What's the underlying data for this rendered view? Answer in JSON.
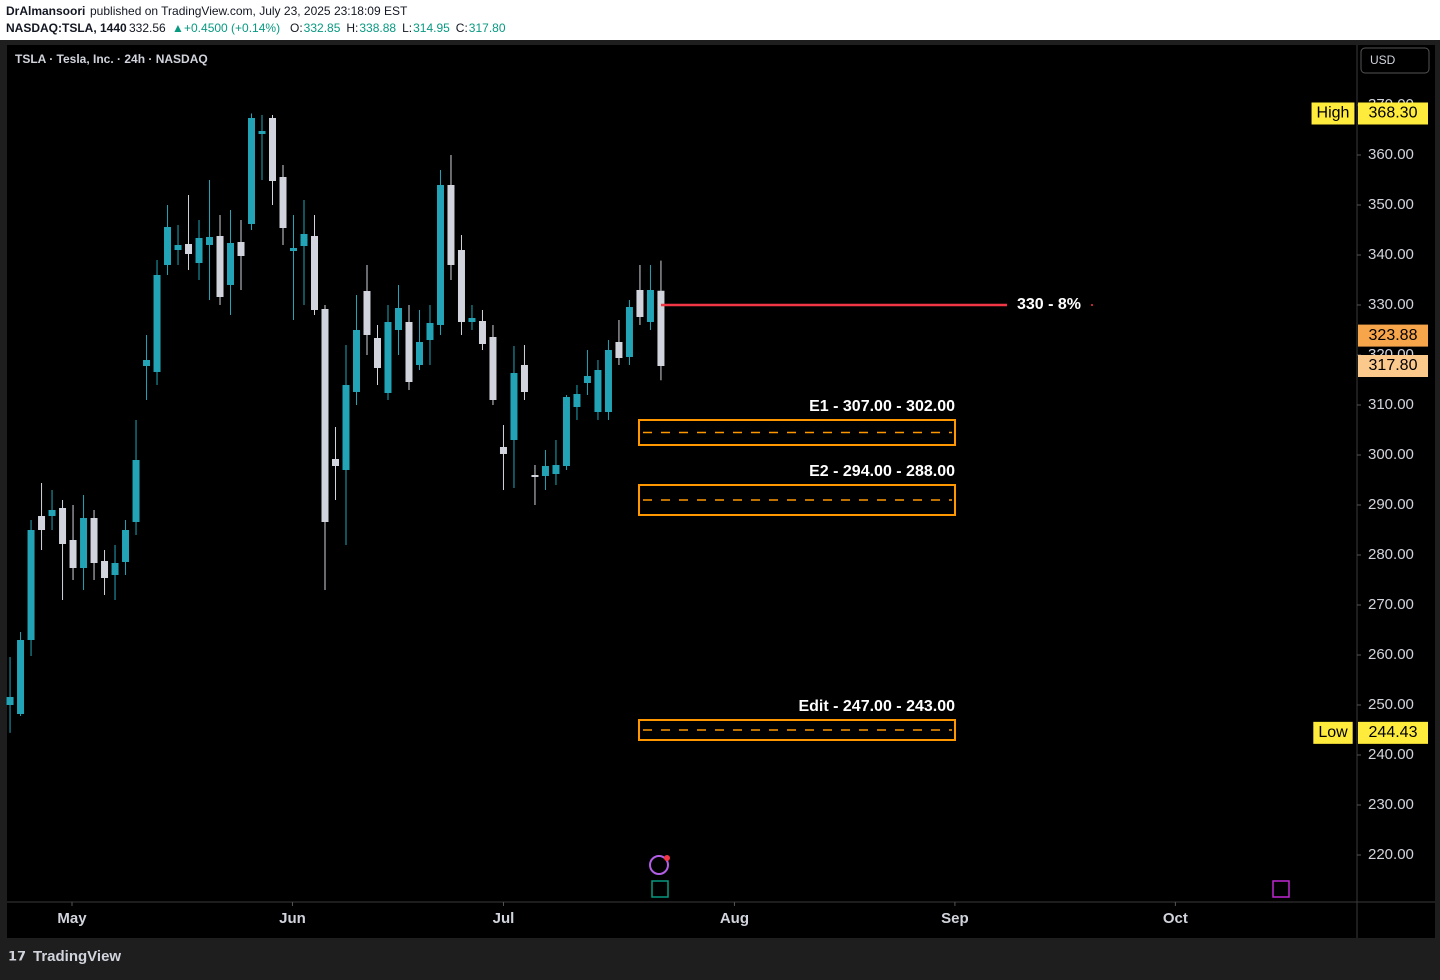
{
  "header": {
    "author": "DrAlmansoori",
    "published": "published on TradingView.com, July 23, 2025 23:18:09 EST",
    "symbol": "NASDAQ:TSLA, 1440",
    "last": "332.56",
    "change": "+0.4500 (+0.14%)",
    "ohlc": [
      {
        "label": "O:",
        "value": "332.85"
      },
      {
        "label": "H:",
        "value": "338.88"
      },
      {
        "label": "L:",
        "value": "314.95"
      },
      {
        "label": "C:",
        "value": "317.80"
      }
    ]
  },
  "footer": {
    "brand": "TradingView"
  },
  "chart_data": {
    "type": "candlestick",
    "title": "TSLA · Tesla, Inc. · 24h · NASDAQ",
    "currency": "USD",
    "up_color": "#22a4b6",
    "down_color": "#d1d4dc",
    "xlim": [
      -0.29,
      128.3
    ],
    "xticks": [
      {
        "value": 5.9,
        "label": "May"
      },
      {
        "value": 26.9,
        "label": "Jun"
      },
      {
        "value": 47,
        "label": "Jul"
      },
      {
        "value": 69,
        "label": "Aug"
      },
      {
        "value": 90,
        "label": "Sep"
      },
      {
        "value": 111,
        "label": "Oct"
      }
    ],
    "ylim": [
      210.6,
      382
    ],
    "yticks": [
      {
        "value": 220,
        "label": "220.00"
      },
      {
        "value": 230,
        "label": "230.00"
      },
      {
        "value": 240,
        "label": "240.00"
      },
      {
        "value": 250,
        "label": "250.00"
      },
      {
        "value": 260,
        "label": "260.00"
      },
      {
        "value": 270,
        "label": "270.00"
      },
      {
        "value": 280,
        "label": "280.00"
      },
      {
        "value": 290,
        "label": "290.00"
      },
      {
        "value": 300,
        "label": "300.00"
      },
      {
        "value": 310,
        "label": "310.00"
      },
      {
        "value": 320,
        "label": "320.00"
      },
      {
        "value": 330,
        "label": "330.00"
      },
      {
        "value": 340,
        "label": "340.00"
      },
      {
        "value": 350,
        "label": "350.00"
      },
      {
        "value": 360,
        "label": "360.00"
      },
      {
        "value": 370,
        "label": "370.00"
      }
    ],
    "open": [
      250,
      248.2,
      263,
      287.8,
      287.8,
      289.4,
      283,
      277.4,
      287.4,
      278.8,
      276,
      278.6,
      286.6,
      317.8,
      316.6,
      338,
      341,
      342.2,
      338.4,
      342,
      343.8,
      334,
      342.6,
      346.2,
      364.2,
      367.4,
      355.6,
      340.8,
      341.8,
      343.8,
      329.2,
      299.2,
      297,
      312.6,
      332.8,
      323.4,
      312.4,
      325,
      326.6,
      318,
      323,
      326,
      354,
      341,
      326.6,
      326.8,
      323.6,
      301.6,
      303,
      318,
      296,
      295.8,
      296.2,
      297.8,
      309.6,
      314.4,
      308.6,
      308.6,
      322.6,
      319.6,
      333,
      326.6,
      332.85
    ],
    "high": [
      259.6,
      264.6,
      287,
      294.4,
      293,
      291,
      290,
      292,
      289,
      281,
      282,
      287,
      307,
      324,
      339,
      350,
      346,
      352,
      347,
      355,
      348,
      349,
      347,
      368.3,
      368,
      368,
      358,
      348,
      351,
      348,
      330,
      305.6,
      322,
      332,
      338,
      326,
      330,
      334,
      330,
      329,
      330,
      357,
      360,
      344,
      330,
      329,
      326,
      306,
      321.8,
      322,
      298,
      301,
      303,
      312,
      314,
      321,
      319,
      323,
      327,
      331,
      338,
      338,
      338.88
    ],
    "low": [
      244.43,
      247.8,
      259.8,
      281,
      285,
      271,
      275,
      273,
      275,
      272,
      271,
      276,
      284,
      311,
      314,
      336,
      338,
      337,
      335,
      331,
      330,
      328,
      333,
      345,
      355,
      350,
      342,
      327,
      330,
      328,
      273,
      291,
      282,
      310,
      320,
      314,
      311,
      320,
      313,
      317,
      318,
      324,
      335,
      324,
      325,
      321,
      310,
      293,
      293.4,
      311,
      290,
      293,
      294,
      297,
      307,
      312,
      307,
      307,
      318,
      318,
      326,
      325,
      314.95
    ],
    "close": [
      251.6,
      263,
      285,
      285,
      289,
      282.2,
      277.4,
      287.4,
      278.4,
      275.4,
      278.4,
      285,
      299,
      319,
      336,
      345.6,
      342,
      340.2,
      343.4,
      343.6,
      331.6,
      342.4,
      339.8,
      367.4,
      364.8,
      354.8,
      345.4,
      341.4,
      344.2,
      329,
      286.6,
      297.8,
      314,
      325,
      324,
      317.4,
      326.6,
      329.4,
      314.6,
      322.6,
      326.4,
      354,
      338,
      326.6,
      327.4,
      322.2,
      311,
      300.2,
      316.4,
      312.6,
      295.6,
      297.8,
      298,
      311.6,
      312.2,
      315.8,
      317,
      321,
      319.4,
      329.6,
      327.6,
      333,
      317.8
    ],
    "hline": {
      "value": 330,
      "label": "330 - 8%",
      "color": "#f23645"
    },
    "zones": [
      {
        "label": "E1 - 307.00 - 302.00",
        "top": 307,
        "bottom": 302
      },
      {
        "label": "E2 - 294.00 - 288.00",
        "top": 294,
        "bottom": 288
      },
      {
        "label": "Edit - 247.00 - 243.00",
        "top": 247,
        "bottom": 243
      }
    ],
    "zone_color": "#ff9800",
    "price_tags": [
      {
        "value": 323.88,
        "color": "#f7a54b"
      },
      {
        "value": 317.8,
        "color": "#fcc98d"
      }
    ],
    "high_tag": {
      "label": "High",
      "value": 368.3
    },
    "low_tag": {
      "label": "Low",
      "value": 244.43
    }
  }
}
